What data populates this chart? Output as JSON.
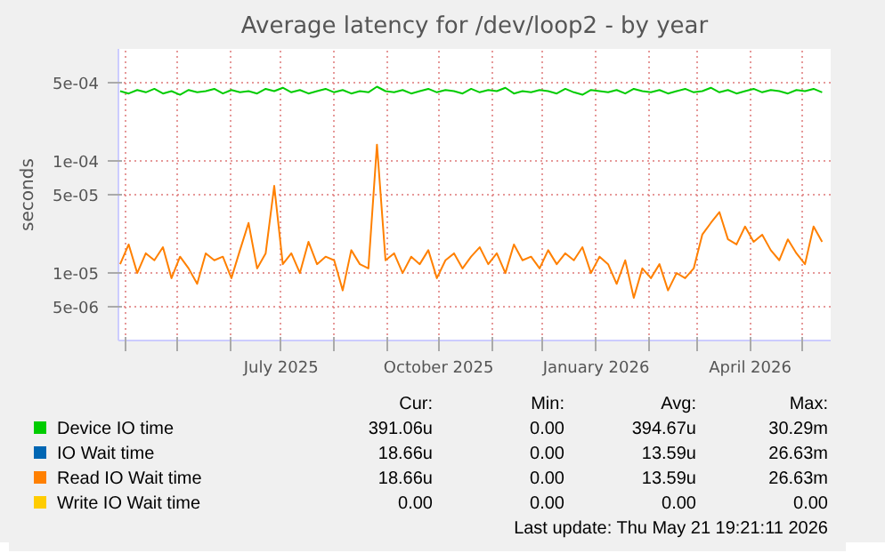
{
  "chart_data": {
    "type": "line",
    "title": "Average latency for /dev/loop2 - by year",
    "ylabel": "seconds",
    "log": "y",
    "grid": true,
    "legend": "bottom",
    "line_style": "solid",
    "marker": "none",
    "xlim": [
      "2025-03-28",
      "2026-05-18"
    ],
    "xticks": [
      {
        "value": "2025-04-01",
        "label": null
      },
      {
        "value": "2025-05-01",
        "label": null
      },
      {
        "value": "2025-06-01",
        "label": null
      },
      {
        "value": "2025-07-01",
        "label": "July 2025"
      },
      {
        "value": "2025-08-01",
        "label": null
      },
      {
        "value": "2025-09-01",
        "label": null
      },
      {
        "value": "2025-10-01",
        "label": "October 2025"
      },
      {
        "value": "2025-11-01",
        "label": null
      },
      {
        "value": "2025-12-01",
        "label": null
      },
      {
        "value": "2026-01-01",
        "label": "January 2026"
      },
      {
        "value": "2026-02-01",
        "label": null
      },
      {
        "value": "2026-03-01",
        "label": null
      },
      {
        "value": "2026-04-01",
        "label": "April 2026"
      },
      {
        "value": "2026-05-01",
        "label": null
      }
    ],
    "ylim": [
      2.5e-06,
      0.001
    ],
    "yticks": [
      {
        "value": 5e-06,
        "label": "5e-06"
      },
      {
        "value": 1e-05,
        "label": "1e-05"
      },
      {
        "value": 5e-05,
        "label": "5e-05"
      },
      {
        "value": 0.0001,
        "label": "1e-04"
      },
      {
        "value": 0.0005,
        "label": "5e-04"
      }
    ],
    "x": [
      "2025-03-29",
      "2025-04-03",
      "2025-04-08",
      "2025-04-13",
      "2025-04-18",
      "2025-04-23",
      "2025-04-28",
      "2025-05-03",
      "2025-05-08",
      "2025-05-13",
      "2025-05-18",
      "2025-05-23",
      "2025-05-28",
      "2025-06-02",
      "2025-06-07",
      "2025-06-12",
      "2025-06-17",
      "2025-06-22",
      "2025-06-27",
      "2025-07-02",
      "2025-07-07",
      "2025-07-12",
      "2025-07-17",
      "2025-07-22",
      "2025-07-27",
      "2025-08-01",
      "2025-08-06",
      "2025-08-11",
      "2025-08-16",
      "2025-08-21",
      "2025-08-26",
      "2025-08-31",
      "2025-09-05",
      "2025-09-10",
      "2025-09-15",
      "2025-09-20",
      "2025-09-25",
      "2025-09-30",
      "2025-10-05",
      "2025-10-10",
      "2025-10-15",
      "2025-10-20",
      "2025-10-25",
      "2025-10-30",
      "2025-11-04",
      "2025-11-09",
      "2025-11-14",
      "2025-11-19",
      "2025-11-24",
      "2025-11-29",
      "2025-12-04",
      "2025-12-09",
      "2025-12-14",
      "2025-12-19",
      "2025-12-24",
      "2025-12-29",
      "2026-01-03",
      "2026-01-08",
      "2026-01-13",
      "2026-01-18",
      "2026-01-23",
      "2026-01-28",
      "2026-02-02",
      "2026-02-07",
      "2026-02-12",
      "2026-02-17",
      "2026-02-22",
      "2026-02-27",
      "2026-03-04",
      "2026-03-09",
      "2026-03-14",
      "2026-03-19",
      "2026-03-24",
      "2026-03-29",
      "2026-04-03",
      "2026-04-08",
      "2026-04-13",
      "2026-04-18",
      "2026-04-23",
      "2026-04-28",
      "2026-05-03",
      "2026-05-08",
      "2026-05-13"
    ],
    "series": [
      {
        "name": "Device IO time",
        "color": "#00cc00",
        "values": [
          0.00042,
          0.0004,
          0.00043,
          0.00041,
          0.00044,
          0.0004,
          0.00042,
          0.00039,
          0.00043,
          0.00041,
          0.00042,
          0.00044,
          0.0004,
          0.00043,
          0.00041,
          0.00042,
          0.0004,
          0.00044,
          0.00042,
          0.00045,
          0.00041,
          0.00043,
          0.0004,
          0.00042,
          0.00044,
          0.00041,
          0.00043,
          0.0004,
          0.00042,
          0.00041,
          0.00046,
          0.00042,
          0.00041,
          0.00043,
          0.0004,
          0.00042,
          0.00044,
          0.00041,
          0.00043,
          0.00042,
          0.0004,
          0.00044,
          0.00041,
          0.00043,
          0.00042,
          0.00045,
          0.0004,
          0.00042,
          0.00041,
          0.00043,
          0.00042,
          0.0004,
          0.00044,
          0.00041,
          0.00039,
          0.00043,
          0.00042,
          0.00041,
          0.00043,
          0.0004,
          0.00044,
          0.00042,
          0.00041,
          0.00043,
          0.0004,
          0.00042,
          0.00044,
          0.00041,
          0.00042,
          0.00045,
          0.00041,
          0.00043,
          0.0004,
          0.00042,
          0.00044,
          0.00041,
          0.00043,
          0.00042,
          0.0004,
          0.00043,
          0.00042,
          0.00044,
          0.00041
        ]
      },
      {
        "name": "IO Wait time",
        "color": "#0066b3",
        "values": [
          null,
          null,
          null,
          null,
          null,
          null,
          null,
          null,
          null,
          null,
          null,
          null,
          null,
          null,
          null,
          null,
          null,
          null,
          null,
          null,
          null,
          null,
          null,
          null,
          null,
          null,
          null,
          null,
          null,
          null,
          null,
          null,
          null,
          null,
          null,
          null,
          null,
          null,
          null,
          null,
          null,
          null,
          null,
          null,
          null,
          null,
          null,
          null,
          null,
          null,
          null,
          null,
          null,
          null,
          null,
          null,
          null,
          null,
          null,
          null,
          null,
          null,
          null,
          null,
          null,
          null,
          null,
          null,
          null,
          null,
          null,
          null,
          null,
          null,
          null,
          null,
          null,
          null,
          null,
          null,
          null,
          null,
          null
        ]
      },
      {
        "name": "Read IO Wait time",
        "color": "#ff8000",
        "values": [
          1.2e-05,
          1.8e-05,
          1e-05,
          1.5e-05,
          1.3e-05,
          1.7e-05,
          9e-06,
          1.4e-05,
          1.1e-05,
          8e-06,
          1.5e-05,
          1.3e-05,
          1.4e-05,
          9e-06,
          1.6e-05,
          2.8e-05,
          1.1e-05,
          1.5e-05,
          6e-05,
          1.2e-05,
          1.5e-05,
          1e-05,
          1.9e-05,
          1.2e-05,
          1.4e-05,
          1.3e-05,
          7e-06,
          1.6e-05,
          1.2e-05,
          1.1e-05,
          0.00014,
          1.3e-05,
          1.5e-05,
          1e-05,
          1.4e-05,
          1.2e-05,
          1.6e-05,
          9e-06,
          1.3e-05,
          1.5e-05,
          1.1e-05,
          1.4e-05,
          1.7e-05,
          1.2e-05,
          1.5e-05,
          1e-05,
          1.8e-05,
          1.3e-05,
          1.4e-05,
          1.1e-05,
          1.6e-05,
          1.2e-05,
          1.5e-05,
          1.3e-05,
          1.7e-05,
          1e-05,
          1.4e-05,
          1.2e-05,
          8e-06,
          1.3e-05,
          6e-06,
          1.1e-05,
          9e-06,
          1.2e-05,
          7e-06,
          1e-05,
          9e-06,
          1.1e-05,
          2.2e-05,
          2.8e-05,
          3.5e-05,
          2e-05,
          1.8e-05,
          2.6e-05,
          1.9e-05,
          2.2e-05,
          1.6e-05,
          1.3e-05,
          2e-05,
          1.5e-05,
          1.2e-05,
          2.6e-05,
          1.9e-05
        ]
      },
      {
        "name": "Write IO Wait time",
        "color": "#ffcc00",
        "values": [
          null,
          null,
          null,
          null,
          null,
          null,
          null,
          null,
          null,
          null,
          null,
          null,
          null,
          null,
          null,
          null,
          null,
          null,
          null,
          null,
          null,
          null,
          null,
          null,
          null,
          null,
          null,
          null,
          null,
          null,
          null,
          null,
          null,
          null,
          null,
          null,
          null,
          null,
          null,
          null,
          null,
          null,
          null,
          null,
          null,
          null,
          null,
          null,
          null,
          null,
          null,
          null,
          null,
          null,
          null,
          null,
          null,
          null,
          null,
          null,
          null,
          null,
          null,
          null,
          null,
          null,
          null,
          null,
          null,
          null,
          null,
          null,
          null,
          null,
          null,
          null,
          null,
          null,
          null,
          null,
          null,
          null,
          null
        ]
      }
    ],
    "annotations": [
      "Cur:",
      "Min:",
      "Avg:",
      "Max:",
      "391.06u",
      "0.00",
      "394.67u",
      "30.29m",
      "18.66u",
      "0.00",
      "13.59u",
      "26.63m",
      "18.66u",
      "0.00",
      "13.59u",
      "26.63m",
      "0.00",
      "0.00",
      "0.00",
      "0.00",
      "Last update: Thu May 21 19:21:11 2026"
    ]
  }
}
